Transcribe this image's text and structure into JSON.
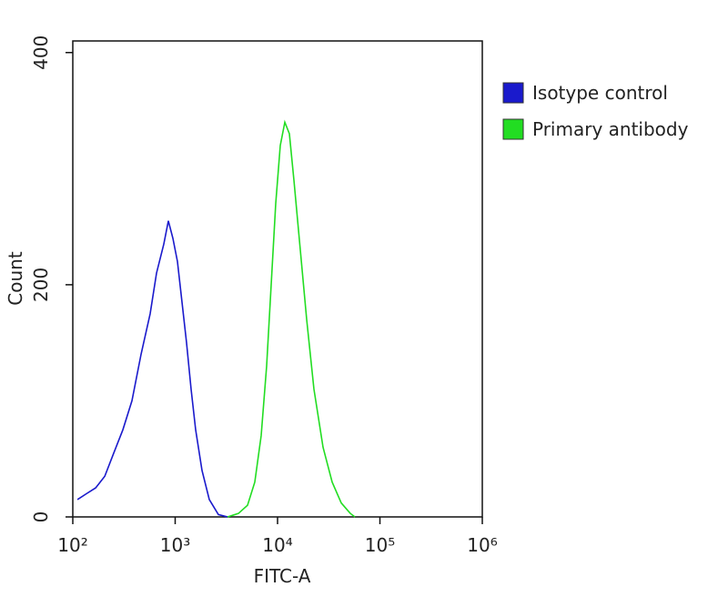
{
  "chart_data": {
    "type": "line",
    "x_label": "FITC-A",
    "y_label": "Count",
    "xscale": "log",
    "xlim": [
      100,
      1000000
    ],
    "xticks": [
      {
        "value": 100,
        "label": "10²"
      },
      {
        "value": 1000,
        "label": "10³"
      },
      {
        "value": 10000,
        "label": "10⁴"
      },
      {
        "value": 100000,
        "label": "10⁵"
      },
      {
        "value": 1000000,
        "label": "10⁶"
      }
    ],
    "ylim": [
      0,
      410
    ],
    "yticks": [
      0,
      200,
      400
    ],
    "legend": "right",
    "series": [
      {
        "name": "Isotype control",
        "color": "#1a1acc",
        "x": [
          111,
          136,
          167,
          205,
          251,
          308,
          378,
          464,
          570,
          657,
          774,
          858,
          950,
          1052,
          1166,
          1292,
          1431,
          1585,
          1829,
          2154,
          2643,
          3245
        ],
        "values": [
          15,
          20,
          25,
          35,
          55,
          75,
          100,
          140,
          175,
          210,
          235,
          255,
          240,
          220,
          185,
          150,
          110,
          75,
          40,
          15,
          2,
          0
        ]
      },
      {
        "name": "Primary antibody",
        "color": "#22dd22",
        "x": [
          3245,
          4147,
          5088,
          5995,
          6918,
          7824,
          8667,
          9599,
          10633,
          11778,
          13046,
          14454,
          16681,
          19253,
          22680,
          27825,
          34145,
          41900,
          51420,
          56960
        ],
        "values": [
          0,
          3,
          10,
          30,
          70,
          130,
          200,
          270,
          320,
          340,
          330,
          290,
          230,
          170,
          110,
          60,
          30,
          12,
          3,
          0
        ]
      }
    ]
  }
}
